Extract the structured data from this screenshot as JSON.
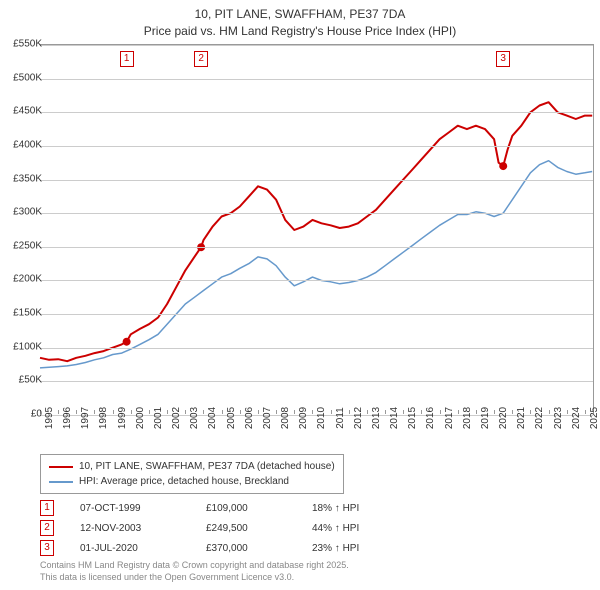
{
  "title": {
    "line1": "10, PIT LANE, SWAFFHAM, PE37 7DA",
    "line2": "Price paid vs. HM Land Registry's House Price Index (HPI)"
  },
  "chart": {
    "type": "line",
    "background_color": "#ffffff",
    "grid_color": "#cccccc",
    "axis_color": "#999999",
    "font_size_axis": 10,
    "ylim": [
      0,
      550
    ],
    "ytick_step": 50,
    "y_tick_labels": [
      "£0",
      "£50K",
      "£100K",
      "£150K",
      "£200K",
      "£250K",
      "£300K",
      "£350K",
      "£400K",
      "£450K",
      "£500K",
      "£550K"
    ],
    "xlim": [
      1995,
      2025.5
    ],
    "x_ticks": [
      1995,
      1996,
      1997,
      1998,
      1999,
      2000,
      2001,
      2002,
      2003,
      2004,
      2005,
      2006,
      2007,
      2008,
      2009,
      2010,
      2011,
      2012,
      2013,
      2014,
      2015,
      2016,
      2017,
      2018,
      2019,
      2020,
      2021,
      2022,
      2023,
      2024,
      2025
    ],
    "series": [
      {
        "name": "10, PIT LANE, SWAFFHAM, PE37 7DA (detached house)",
        "color": "#cc0000",
        "line_width": 2,
        "points": [
          [
            1995.0,
            85
          ],
          [
            1995.5,
            82
          ],
          [
            1996.0,
            83
          ],
          [
            1996.5,
            80
          ],
          [
            1997.0,
            85
          ],
          [
            1997.5,
            88
          ],
          [
            1998.0,
            92
          ],
          [
            1998.5,
            95
          ],
          [
            1999.0,
            100
          ],
          [
            1999.5,
            105
          ],
          [
            1999.77,
            109
          ],
          [
            2000.0,
            120
          ],
          [
            2000.5,
            128
          ],
          [
            2001.0,
            135
          ],
          [
            2001.5,
            145
          ],
          [
            2002.0,
            165
          ],
          [
            2002.5,
            190
          ],
          [
            2003.0,
            215
          ],
          [
            2003.5,
            235
          ],
          [
            2003.87,
            249.5
          ],
          [
            2004.0,
            260
          ],
          [
            2004.5,
            280
          ],
          [
            2005.0,
            295
          ],
          [
            2005.5,
            300
          ],
          [
            2006.0,
            310
          ],
          [
            2006.5,
            325
          ],
          [
            2007.0,
            340
          ],
          [
            2007.5,
            335
          ],
          [
            2008.0,
            320
          ],
          [
            2008.5,
            290
          ],
          [
            2009.0,
            275
          ],
          [
            2009.5,
            280
          ],
          [
            2010.0,
            290
          ],
          [
            2010.5,
            285
          ],
          [
            2011.0,
            282
          ],
          [
            2011.5,
            278
          ],
          [
            2012.0,
            280
          ],
          [
            2012.5,
            285
          ],
          [
            2013.0,
            295
          ],
          [
            2013.5,
            305
          ],
          [
            2014.0,
            320
          ],
          [
            2014.5,
            335
          ],
          [
            2015.0,
            350
          ],
          [
            2015.5,
            365
          ],
          [
            2016.0,
            380
          ],
          [
            2016.5,
            395
          ],
          [
            2017.0,
            410
          ],
          [
            2017.5,
            420
          ],
          [
            2018.0,
            430
          ],
          [
            2018.5,
            425
          ],
          [
            2019.0,
            430
          ],
          [
            2019.5,
            425
          ],
          [
            2020.0,
            410
          ],
          [
            2020.25,
            375
          ],
          [
            2020.5,
            370
          ],
          [
            2020.75,
            395
          ],
          [
            2021.0,
            415
          ],
          [
            2021.5,
            430
          ],
          [
            2022.0,
            450
          ],
          [
            2022.5,
            460
          ],
          [
            2023.0,
            465
          ],
          [
            2023.5,
            450
          ],
          [
            2024.0,
            445
          ],
          [
            2024.5,
            440
          ],
          [
            2025.0,
            445
          ],
          [
            2025.4,
            445
          ]
        ],
        "sale_dots": [
          [
            1999.77,
            109
          ],
          [
            2003.87,
            249.5
          ],
          [
            2020.5,
            370
          ]
        ]
      },
      {
        "name": "HPI: Average price, detached house, Breckland",
        "color": "#6699cc",
        "line_width": 1.5,
        "points": [
          [
            1995.0,
            70
          ],
          [
            1995.5,
            71
          ],
          [
            1996.0,
            72
          ],
          [
            1996.5,
            73
          ],
          [
            1997.0,
            75
          ],
          [
            1997.5,
            78
          ],
          [
            1998.0,
            82
          ],
          [
            1998.5,
            85
          ],
          [
            1999.0,
            90
          ],
          [
            1999.5,
            92
          ],
          [
            2000.0,
            98
          ],
          [
            2000.5,
            105
          ],
          [
            2001.0,
            112
          ],
          [
            2001.5,
            120
          ],
          [
            2002.0,
            135
          ],
          [
            2002.5,
            150
          ],
          [
            2003.0,
            165
          ],
          [
            2003.5,
            175
          ],
          [
            2004.0,
            185
          ],
          [
            2004.5,
            195
          ],
          [
            2005.0,
            205
          ],
          [
            2005.5,
            210
          ],
          [
            2006.0,
            218
          ],
          [
            2006.5,
            225
          ],
          [
            2007.0,
            235
          ],
          [
            2007.5,
            232
          ],
          [
            2008.0,
            222
          ],
          [
            2008.5,
            205
          ],
          [
            2009.0,
            192
          ],
          [
            2009.5,
            198
          ],
          [
            2010.0,
            205
          ],
          [
            2010.5,
            200
          ],
          [
            2011.0,
            198
          ],
          [
            2011.5,
            195
          ],
          [
            2012.0,
            197
          ],
          [
            2012.5,
            200
          ],
          [
            2013.0,
            205
          ],
          [
            2013.5,
            212
          ],
          [
            2014.0,
            222
          ],
          [
            2014.5,
            232
          ],
          [
            2015.0,
            242
          ],
          [
            2015.5,
            252
          ],
          [
            2016.0,
            262
          ],
          [
            2016.5,
            272
          ],
          [
            2017.0,
            282
          ],
          [
            2017.5,
            290
          ],
          [
            2018.0,
            298
          ],
          [
            2018.5,
            298
          ],
          [
            2019.0,
            302
          ],
          [
            2019.5,
            300
          ],
          [
            2020.0,
            295
          ],
          [
            2020.5,
            300
          ],
          [
            2021.0,
            320
          ],
          [
            2021.5,
            340
          ],
          [
            2022.0,
            360
          ],
          [
            2022.5,
            372
          ],
          [
            2023.0,
            378
          ],
          [
            2023.5,
            368
          ],
          [
            2024.0,
            362
          ],
          [
            2024.5,
            358
          ],
          [
            2025.0,
            360
          ],
          [
            2025.4,
            362
          ]
        ]
      }
    ],
    "markers": [
      {
        "n": "1",
        "x": 1999.77
      },
      {
        "n": "2",
        "x": 2003.87
      },
      {
        "n": "3",
        "x": 2020.5
      }
    ]
  },
  "legend": {
    "rows": [
      {
        "color": "#cc0000",
        "label": "10, PIT LANE, SWAFFHAM, PE37 7DA (detached house)"
      },
      {
        "color": "#6699cc",
        "label": "HPI: Average price, detached house, Breckland"
      }
    ]
  },
  "events": [
    {
      "n": "1",
      "date": "07-OCT-1999",
      "price": "£109,000",
      "delta": "18% ↑ HPI"
    },
    {
      "n": "2",
      "date": "12-NOV-2003",
      "price": "£249,500",
      "delta": "44% ↑ HPI"
    },
    {
      "n": "3",
      "date": "01-JUL-2020",
      "price": "£370,000",
      "delta": "23% ↑ HPI"
    }
  ],
  "footer": {
    "line1": "Contains HM Land Registry data © Crown copyright and database right 2025.",
    "line2": "This data is licensed under the Open Government Licence v3.0."
  }
}
